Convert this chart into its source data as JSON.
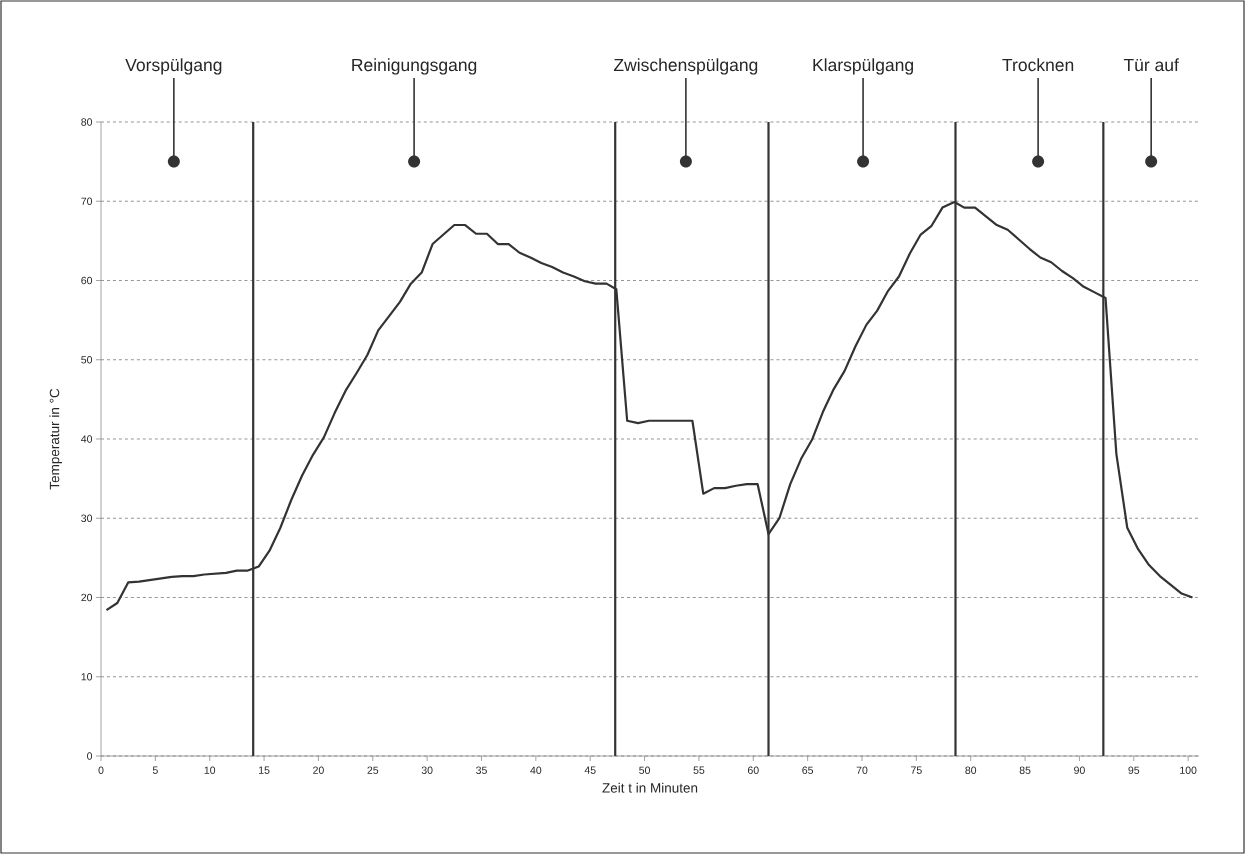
{
  "chart_data": {
    "type": "line",
    "xlabel": "Zeit t in Minuten",
    "ylabel": "Temperatur in °C",
    "x": [
      0.5,
      1.5,
      2.5,
      3.5,
      4.5,
      5.5,
      6.5,
      7.5,
      8.5,
      9.5,
      10.5,
      11.5,
      12.5,
      13.5,
      14.5,
      15.5,
      16.5,
      17.5,
      18.5,
      19.5,
      20.5,
      21.5,
      22.5,
      23.5,
      24.5,
      25.5,
      26.5,
      27.5,
      28.5,
      29.5,
      30.5,
      31.5,
      32.5,
      33.5,
      34.5,
      35.5,
      36.5,
      37.5,
      38.5,
      39.5,
      40.5,
      41.5,
      42.5,
      43.5,
      44.5,
      45.5,
      46.5,
      47.4,
      48.4,
      49.4,
      50.4,
      54.4,
      55.4,
      56.4,
      57.4,
      58.4,
      59.4,
      60.4,
      61.4,
      62.4,
      63.4,
      64.4,
      65.4,
      66.4,
      67.4,
      68.4,
      69.4,
      70.4,
      71.4,
      72.4,
      73.4,
      74.4,
      75.4,
      76.4,
      77.4,
      78.5,
      79.4,
      80.4,
      81.4,
      82.4,
      83.4,
      84.4,
      85.4,
      86.4,
      87.4,
      88.4,
      89.4,
      90.4,
      91.4,
      92.4,
      93.4,
      94.4,
      95.4,
      96.4,
      97.4,
      98.4,
      99.4,
      100.4
    ],
    "values": [
      18.4,
      19.3,
      21.9,
      22.0,
      22.2,
      22.4,
      22.6,
      22.7,
      22.7,
      22.9,
      23.0,
      23.1,
      23.4,
      23.4,
      23.9,
      25.9,
      28.8,
      32.3,
      35.4,
      38.0,
      40.2,
      43.3,
      46.1,
      48.3,
      50.6,
      53.7,
      55.5,
      57.3,
      59.6,
      61.0,
      64.6,
      65.8,
      67.0,
      67.0,
      65.9,
      65.9,
      64.6,
      64.6,
      63.5,
      62.9,
      62.2,
      61.7,
      61.0,
      60.5,
      59.9,
      59.6,
      59.6,
      58.9,
      42.3,
      42.0,
      42.3,
      42.3,
      33.1,
      33.8,
      33.8,
      34.1,
      34.3,
      34.3,
      28.0,
      30.0,
      34.3,
      37.5,
      39.9,
      43.4,
      46.3,
      48.6,
      51.7,
      54.4,
      56.2,
      58.7,
      60.5,
      63.4,
      65.8,
      66.9,
      69.2,
      69.9,
      69.2,
      69.2,
      68.1,
      67.0,
      66.4,
      65.2,
      64.0,
      62.9,
      62.3,
      61.2,
      60.3,
      59.2,
      58.5,
      57.8,
      38.1,
      28.8,
      26.1,
      24.1,
      22.7,
      21.6,
      20.5,
      20.0
    ],
    "color": "#333333",
    "line_style": "solid",
    "marker": "none",
    "xlim": [
      0,
      101
    ],
    "ylim": [
      0,
      80
    ],
    "xticks": [
      0,
      5,
      10,
      15,
      20,
      25,
      30,
      35,
      40,
      45,
      50,
      55,
      60,
      65,
      70,
      75,
      80,
      85,
      90,
      95,
      100
    ],
    "yticks": [
      0,
      10,
      20,
      30,
      40,
      50,
      60,
      70,
      80
    ],
    "grid": "y",
    "ref_lines": [
      {
        "axis": "x",
        "value": 14,
        "color": "#333333"
      },
      {
        "axis": "x",
        "value": 47.3,
        "color": "#333333"
      },
      {
        "axis": "x",
        "value": 61.4,
        "color": "#333333"
      },
      {
        "axis": "x",
        "value": 78.6,
        "color": "#333333"
      },
      {
        "axis": "x",
        "value": 92.2,
        "color": "#333333"
      }
    ],
    "annotations": [
      {
        "text": "Vorspülgang",
        "x": 6.7,
        "y": 75
      },
      {
        "text": "Reinigungsgang",
        "x": 28.8,
        "y": 75
      },
      {
        "text": "Zwischenspülgang",
        "x": 53.8,
        "y": 75
      },
      {
        "text": "Klarspülgang",
        "x": 70.1,
        "y": 75
      },
      {
        "text": "Trocknen",
        "x": 86.2,
        "y": 75
      },
      {
        "text": "Tür auf",
        "x": 96.6,
        "y": 75
      }
    ]
  }
}
